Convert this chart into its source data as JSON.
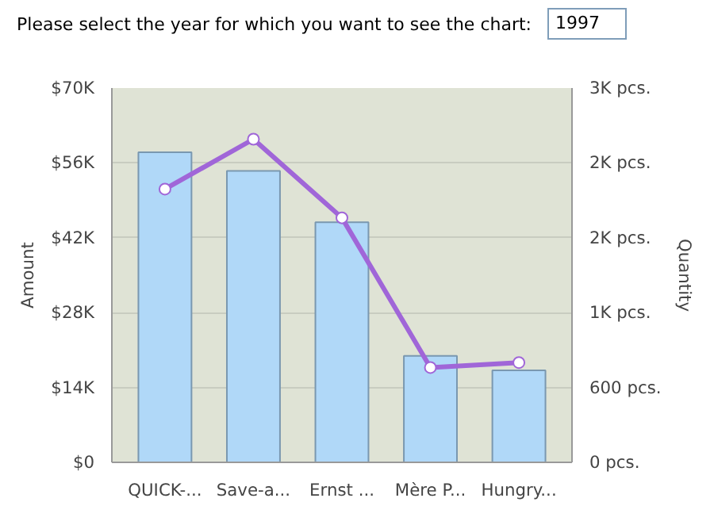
{
  "chart_data": {
    "type": "bar",
    "annotations": [
      "Please select the year for which you want to see the chart:",
      "1997"
    ],
    "xlabel": null,
    "ylabel": "Amount",
    "y2label": "Quantity",
    "categories": [
      "QUICK-...",
      "Save-a...",
      "Ernst ...",
      "Mère P...",
      "Hungry..."
    ],
    "series": [
      {
        "type": "bar",
        "color": "#b0d8f8",
        "values": [
          58000,
          54500,
          44900,
          19900,
          17200
        ]
      },
      {
        "type": "line",
        "axis": "y2",
        "color": "#a066d8",
        "values": [
          2190,
          2590,
          1960,
          760,
          800
        ]
      }
    ],
    "ylim": [
      0,
      70000
    ],
    "yticks": [
      {
        "value": 0,
        "label": "$0"
      },
      {
        "value": 14000,
        "label": "$14K"
      },
      {
        "value": 28000,
        "label": "$28K"
      },
      {
        "value": 42000,
        "label": "$42K"
      },
      {
        "value": 56000,
        "label": "$56K"
      },
      {
        "value": 70000,
        "label": "$70K"
      }
    ],
    "y2lim": [
      0,
      3000
    ],
    "y2ticks": [
      {
        "value": 0,
        "label": "0 pcs."
      },
      {
        "value": 600,
        "label": "600 pcs."
      },
      {
        "value": 1200,
        "label": "1K pcs."
      },
      {
        "value": 1800,
        "label": "2K pcs."
      },
      {
        "value": 2400,
        "label": "2K pcs."
      },
      {
        "value": 3000,
        "label": "3K pcs."
      }
    ],
    "grid": "y",
    "marker": "circle",
    "line_style": "solid"
  }
}
